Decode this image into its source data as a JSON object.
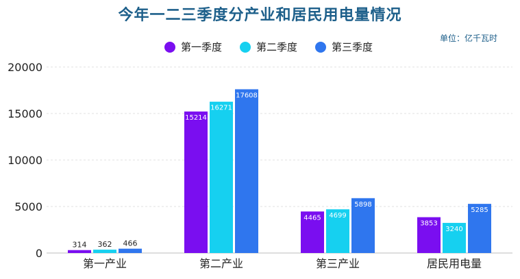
{
  "chart_data": {
    "type": "bar",
    "title": "今年一二三季度分产业和居民用电量情况",
    "unit_note": "单位：亿千瓦时",
    "categories": [
      "第一产业",
      "第二产业",
      "第三产业",
      "居民用电量"
    ],
    "series": [
      {
        "name": "第一季度",
        "color": "#7a0ef0",
        "values": [
          314,
          15214,
          4465,
          3853
        ]
      },
      {
        "name": "第二季度",
        "color": "#16d0f0",
        "values": [
          362,
          16271,
          4699,
          3240
        ]
      },
      {
        "name": "第三季度",
        "color": "#2f76ee",
        "values": [
          466,
          17608,
          5898,
          5285
        ]
      }
    ],
    "yticks": [
      0,
      5000,
      10000,
      15000,
      20000
    ],
    "ylim": [
      0,
      20000
    ],
    "grid": true,
    "legend_position": "top"
  }
}
